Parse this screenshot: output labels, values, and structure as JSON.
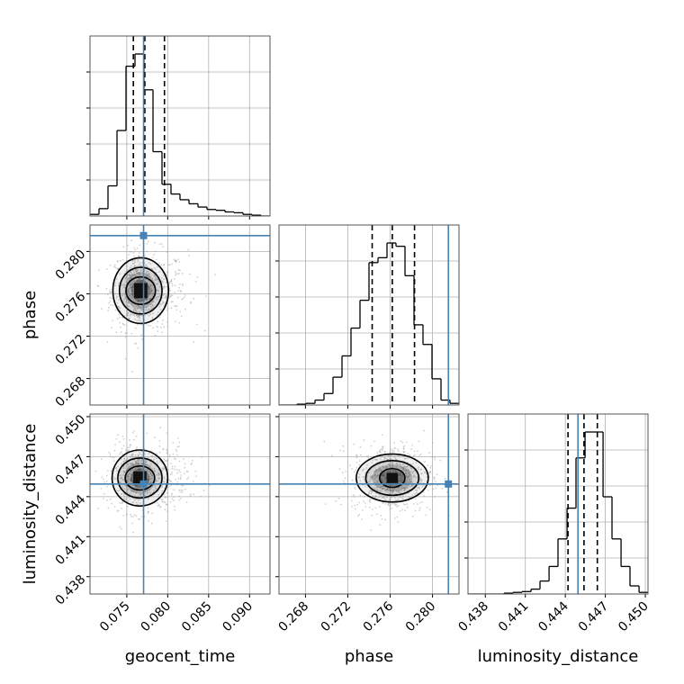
{
  "colors": {
    "truth": "#4682b4",
    "hist": "#000000",
    "grid": "#b0b0b0",
    "points": "#9a9a9a"
  },
  "chart_data": {
    "type": "corner",
    "grid": true,
    "parameters": [
      "geocent_time",
      "phase",
      "luminosity_distance"
    ],
    "axis_labels": {
      "geocent_time": "geocent_time",
      "phase": "phase",
      "luminosity_distance": "luminosity_distance"
    },
    "ranges": {
      "geocent_time": [
        0.0705,
        0.0925
      ],
      "phase": [
        0.2655,
        0.2825
      ],
      "luminosity_distance": [
        0.4367,
        0.4502
      ]
    },
    "ticks": {
      "geocent_time": [
        "0.075",
        "0.080",
        "0.085",
        "0.090"
      ],
      "phase": [
        "0.268",
        "0.272",
        "0.276",
        "0.280"
      ],
      "luminosity_distance": [
        "0.438",
        "0.441",
        "0.444",
        "0.447",
        "0.450"
      ]
    },
    "truths": {
      "geocent_time": 0.07705,
      "phase": 0.2815,
      "luminosity_distance": 0.44495
    },
    "quantiles": {
      "geocent_time": [
        0.0758,
        0.0772,
        0.0796
      ],
      "phase": [
        0.2743,
        0.2762,
        0.2783
      ],
      "luminosity_distance": [
        0.4442,
        0.4454,
        0.4464
      ]
    },
    "histograms": {
      "geocent_time": {
        "edges": [
          0.0705,
          0.0716,
          0.0727,
          0.0738,
          0.0749,
          0.076,
          0.0771,
          0.0782,
          0.0793,
          0.0804,
          0.0815,
          0.0826,
          0.0837,
          0.0848,
          0.0859,
          0.087,
          0.0881,
          0.0892,
          0.0903,
          0.0914,
          0.0925
        ],
        "counts": [
          0.01,
          0.045,
          0.185,
          0.525,
          0.92,
          0.995,
          0.775,
          0.395,
          0.195,
          0.135,
          0.1,
          0.075,
          0.055,
          0.04,
          0.035,
          0.025,
          0.02,
          0.01,
          0.005,
          0.0
        ]
      },
      "phase": {
        "edges": [
          0.2655,
          0.26635,
          0.2672,
          0.26805,
          0.2689,
          0.26975,
          0.2706,
          0.27145,
          0.2723,
          0.27315,
          0.274,
          0.27485,
          0.2757,
          0.27655,
          0.2774,
          0.27825,
          0.2791,
          0.27995,
          0.2808,
          0.28165,
          0.2825
        ],
        "counts": [
          0.0,
          0.0,
          0.005,
          0.01,
          0.03,
          0.07,
          0.17,
          0.3,
          0.47,
          0.64,
          0.87,
          0.9,
          0.99,
          0.97,
          0.79,
          0.49,
          0.37,
          0.16,
          0.03,
          0.01
        ]
      },
      "luminosity_distance": {
        "edges": [
          0.4367,
          0.43738,
          0.43805,
          0.43873,
          0.4394,
          0.44008,
          0.44075,
          0.44143,
          0.4421,
          0.44278,
          0.44345,
          0.44413,
          0.4448,
          0.44548,
          0.44615,
          0.44683,
          0.4475,
          0.44818,
          0.44885,
          0.44953,
          0.4502
        ],
        "counts": [
          0.0,
          0.0,
          0.0,
          0.0,
          0.005,
          0.01,
          0.015,
          0.03,
          0.08,
          0.17,
          0.34,
          0.53,
          0.84,
          1.0,
          1.0,
          0.6,
          0.34,
          0.17,
          0.05,
          0.01
        ]
      }
    },
    "pairs": [
      {
        "x": "geocent_time",
        "y": "phase",
        "center": [
          0.0767,
          0.2763
        ],
        "spread": [
          0.0018,
          0.0019
        ],
        "contours": [
          {
            "level": 0.5,
            "rx": 0.0018,
            "ry": 0.0013
          },
          {
            "level": 0.9,
            "rx": 0.0026,
            "ry": 0.0022
          },
          {
            "level": 0.99,
            "rx": 0.0034,
            "ry": 0.0031
          }
        ]
      },
      {
        "x": "geocent_time",
        "y": "luminosity_distance",
        "center": [
          0.0766,
          0.4454
        ],
        "spread": [
          0.0018,
          0.0013
        ],
        "contours": [
          {
            "level": 0.5,
            "rx": 0.0018,
            "ry": 0.0009
          },
          {
            "level": 0.9,
            "rx": 0.0027,
            "ry": 0.0015
          },
          {
            "level": 0.99,
            "rx": 0.0034,
            "ry": 0.0021
          }
        ]
      },
      {
        "x": "phase",
        "y": "luminosity_distance",
        "center": [
          0.2762,
          0.4454
        ],
        "spread": [
          0.0019,
          0.0013
        ],
        "contours": [
          {
            "level": 0.5,
            "rx": 0.0012,
            "ry": 0.0007
          },
          {
            "level": 0.9,
            "rx": 0.0025,
            "ry": 0.0013
          },
          {
            "level": 0.99,
            "rx": 0.0034,
            "ry": 0.0018
          }
        ]
      }
    ]
  }
}
